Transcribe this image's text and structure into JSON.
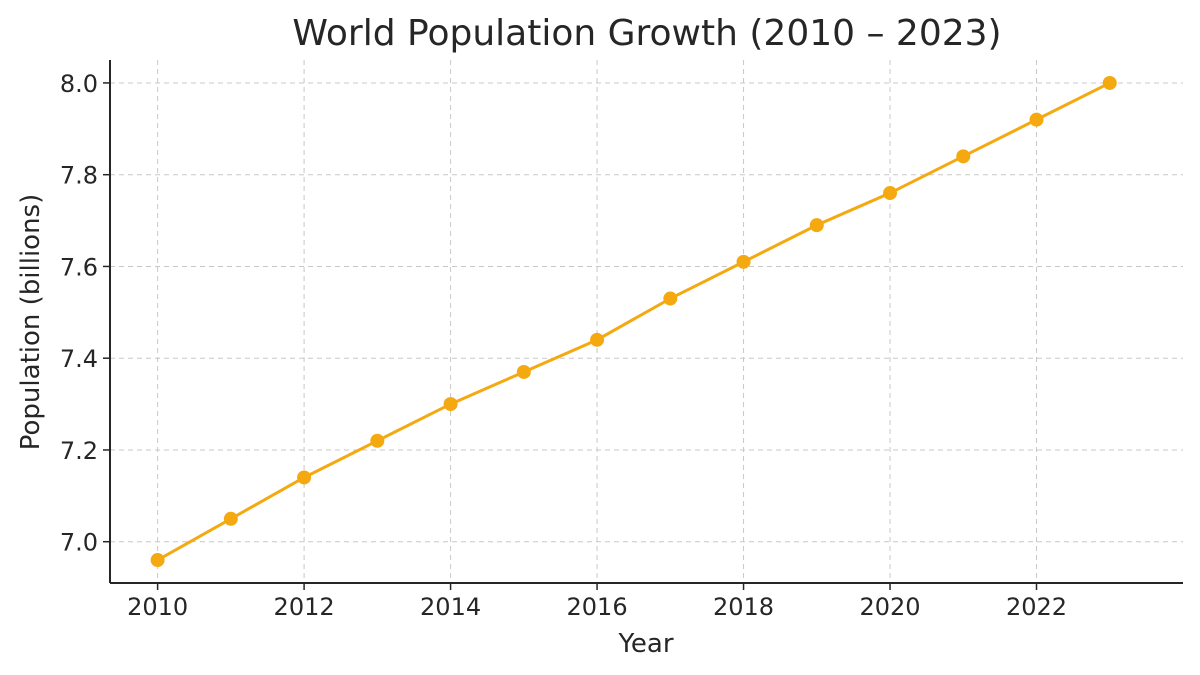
{
  "chart_data": {
    "type": "line",
    "title": "World Population Growth (2010 – 2023)",
    "xlabel": "Year",
    "ylabel": "Population (billions)",
    "x": [
      2010,
      2011,
      2012,
      2013,
      2014,
      2015,
      2016,
      2017,
      2018,
      2019,
      2020,
      2021,
      2022,
      2023
    ],
    "series": [
      {
        "values": [
          6.96,
          7.05,
          7.14,
          7.22,
          7.3,
          7.37,
          7.44,
          7.53,
          7.61,
          7.69,
          7.76,
          7.84,
          7.92,
          8.0
        ],
        "color": "#f5a910",
        "marker": "circle"
      }
    ],
    "xticks": [
      "2010",
      "2012",
      "2014",
      "2016",
      "2018",
      "2020",
      "2022"
    ],
    "yticks": [
      "7.0",
      "7.2",
      "7.4",
      "7.6",
      "7.8",
      "8.0"
    ],
    "xlim": [
      2009.35,
      2024.0
    ],
    "ylim": [
      6.91,
      8.05
    ],
    "grid": true,
    "grid_style": "dashed"
  }
}
